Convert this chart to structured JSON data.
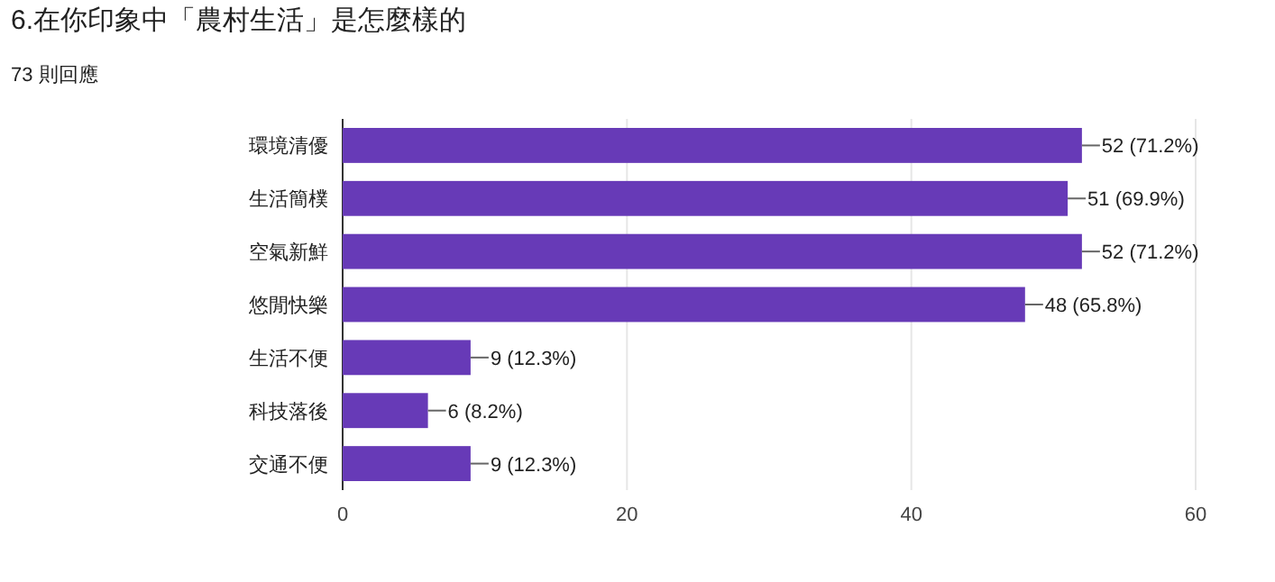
{
  "chart_data": {
    "type": "bar",
    "orientation": "horizontal",
    "title": "6.在你印象中「農村生活」是怎麼樣的",
    "subtitle": "73 則回應",
    "categories": [
      "環境清優",
      "生活簡樸",
      "空氣新鮮",
      "悠閒快樂",
      "生活不便",
      "科技落後",
      "交通不便"
    ],
    "values": [
      52,
      51,
      52,
      48,
      9,
      6,
      9
    ],
    "value_labels": [
      "52 (71.2%)",
      "51 (69.9%)",
      "52 (71.2%)",
      "48 (65.8%)",
      "9 (12.3%)",
      "6 (8.2%)",
      "9 (12.3%)"
    ],
    "color": "#673ab7",
    "xlim": [
      0,
      60
    ],
    "xticks": [
      0,
      20,
      40,
      60
    ],
    "grid": "x"
  }
}
